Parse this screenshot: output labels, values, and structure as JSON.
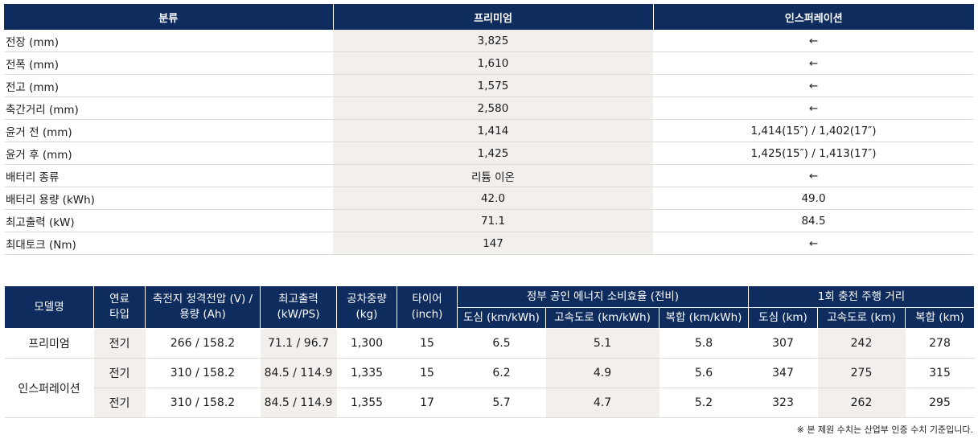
{
  "spec_table": {
    "headers": [
      "분류",
      "프리미엄",
      "인스퍼레이션"
    ],
    "rows": [
      {
        "label": "전장 (mm)",
        "premium": "3,825",
        "inspiration": "←"
      },
      {
        "label": "전폭 (mm)",
        "premium": "1,610",
        "inspiration": "←"
      },
      {
        "label": "전고 (mm)",
        "premium": "1,575",
        "inspiration": "←"
      },
      {
        "label": "축간거리 (mm)",
        "premium": "2,580",
        "inspiration": "←"
      },
      {
        "label": "윤거 전 (mm)",
        "premium": "1,414",
        "inspiration": "1,414(15″) / 1,402(17″)"
      },
      {
        "label": "윤거 후 (mm)",
        "premium": "1,425",
        "inspiration": "1,425(15″) / 1,413(17″)"
      },
      {
        "label": "배터리 종류",
        "premium": "리튬 이온",
        "inspiration": "←"
      },
      {
        "label": "배터리 용량 (kWh)",
        "premium": "42.0",
        "inspiration": "49.0"
      },
      {
        "label": "최고출력 (kW)",
        "premium": "71.1",
        "inspiration": "84.5"
      },
      {
        "label": "최대토크 (Nm)",
        "premium": "147",
        "inspiration": "←"
      }
    ]
  },
  "efficiency_table": {
    "headers": {
      "model": "모델명",
      "fuel": "연료 타입",
      "battery": "축전지 정격전압 (V) / 용량 (Ah)",
      "power": "최고출력 (kW/PS)",
      "weight": "공차중량 (kg)",
      "tire": "타이어 (inch)",
      "efficiency_group": "정부 공인 에너지 소비효율 (전비)",
      "eff_city": "도심 (km/kWh)",
      "eff_highway": "고속도로 (km/kWh)",
      "eff_combined": "복합 (km/kWh)",
      "range_group": "1회 충전 주행 거리",
      "range_city": "도심 (km)",
      "range_highway": "고속도로 (km)",
      "range_combined": "복합 (km)"
    },
    "models": {
      "premium": "프리미엄",
      "inspiration": "인스퍼레이션"
    },
    "rows": [
      {
        "fuel": "전기",
        "battery": "266 / 158.2",
        "power": "71.1 / 96.7",
        "weight": "1,300",
        "tire": "15",
        "eff_city": "6.5",
        "eff_highway": "5.1",
        "eff_combined": "5.8",
        "range_city": "307",
        "range_highway": "242",
        "range_combined": "278"
      },
      {
        "fuel": "전기",
        "battery": "310 / 158.2",
        "power": "84.5 / 114.9",
        "weight": "1,335",
        "tire": "15",
        "eff_city": "6.2",
        "eff_highway": "4.9",
        "eff_combined": "5.6",
        "range_city": "347",
        "range_highway": "275",
        "range_combined": "315"
      },
      {
        "fuel": "전기",
        "battery": "310 / 158.2",
        "power": "84.5 / 114.9",
        "weight": "1,355",
        "tire": "17",
        "eff_city": "5.7",
        "eff_highway": "4.7",
        "eff_combined": "5.2",
        "range_city": "323",
        "range_highway": "262",
        "range_combined": "295"
      }
    ]
  },
  "footnote": "※ 본 제원 수치는 산업부 인증 수치 기준입니다.",
  "colors": {
    "header_bg": "#0e2c5e",
    "shade_bg": "#f3efed"
  }
}
